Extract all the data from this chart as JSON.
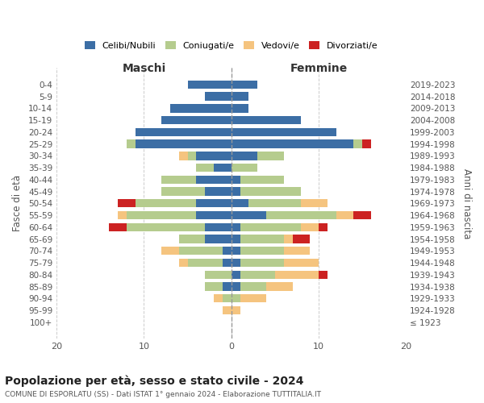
{
  "age_groups": [
    "100+",
    "95-99",
    "90-94",
    "85-89",
    "80-84",
    "75-79",
    "70-74",
    "65-69",
    "60-64",
    "55-59",
    "50-54",
    "45-49",
    "40-44",
    "35-39",
    "30-34",
    "25-29",
    "20-24",
    "15-19",
    "10-14",
    "5-9",
    "0-4"
  ],
  "birth_years": [
    "≤ 1923",
    "1924-1928",
    "1929-1933",
    "1934-1938",
    "1939-1943",
    "1944-1948",
    "1949-1953",
    "1954-1958",
    "1959-1963",
    "1964-1968",
    "1969-1973",
    "1974-1978",
    "1979-1983",
    "1984-1988",
    "1989-1993",
    "1994-1998",
    "1999-2003",
    "2004-2008",
    "2009-2013",
    "2014-2018",
    "2019-2023"
  ],
  "maschi": {
    "celibi": [
      0,
      0,
      0,
      1,
      0,
      1,
      1,
      3,
      3,
      4,
      4,
      3,
      4,
      2,
      4,
      11,
      11,
      8,
      7,
      3,
      5
    ],
    "coniugati": [
      0,
      0,
      1,
      2,
      3,
      4,
      5,
      3,
      9,
      8,
      7,
      5,
      4,
      2,
      1,
      1,
      0,
      0,
      0,
      0,
      0
    ],
    "vedovi": [
      0,
      1,
      1,
      0,
      0,
      1,
      2,
      0,
      0,
      1,
      0,
      0,
      0,
      0,
      1,
      0,
      0,
      0,
      0,
      0,
      0
    ],
    "divorziati": [
      0,
      0,
      0,
      0,
      0,
      0,
      0,
      0,
      2,
      0,
      2,
      0,
      0,
      0,
      0,
      0,
      0,
      0,
      0,
      0,
      0
    ]
  },
  "femmine": {
    "nubili": [
      0,
      0,
      0,
      1,
      1,
      1,
      1,
      1,
      1,
      4,
      2,
      1,
      1,
      0,
      3,
      14,
      12,
      8,
      2,
      2,
      3
    ],
    "coniugate": [
      0,
      0,
      1,
      3,
      4,
      5,
      5,
      5,
      7,
      8,
      6,
      7,
      5,
      3,
      3,
      1,
      0,
      0,
      0,
      0,
      0
    ],
    "vedove": [
      0,
      1,
      3,
      3,
      5,
      4,
      3,
      1,
      2,
      2,
      3,
      0,
      0,
      0,
      0,
      0,
      0,
      0,
      0,
      0,
      0
    ],
    "divorziate": [
      0,
      0,
      0,
      0,
      1,
      0,
      0,
      2,
      1,
      2,
      0,
      0,
      0,
      0,
      0,
      1,
      0,
      0,
      0,
      0,
      0
    ]
  },
  "colors": {
    "celibi_nubili": "#3c6ea5",
    "coniugati": "#b5cc8e",
    "vedovi": "#f5c47f",
    "divorziati": "#cc2222"
  },
  "legend_labels": [
    "Celibi/Nubili",
    "Coniugati/e",
    "Vedovi/e",
    "Divorziati/e"
  ],
  "title": "Popolazione per età, sesso e stato civile - 2024",
  "subtitle": "COMUNE DI ESPORLATU (SS) - Dati ISTAT 1° gennaio 2024 - Elaborazione TUTTITALIA.IT",
  "ylabel": "Fasce di età",
  "right_label": "Anni di nascita",
  "xlim": 20,
  "maschi_label": "Maschi",
  "femmine_label": "Femmine"
}
